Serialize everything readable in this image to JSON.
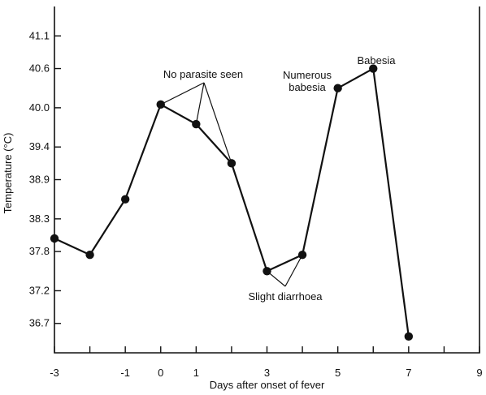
{
  "chart_data": {
    "type": "line",
    "title": "",
    "xlabel": "Days after onset of fever",
    "ylabel": "Temperature (°C)",
    "xlim": [
      -3,
      9
    ],
    "ylim": [
      36.25,
      41.55
    ],
    "x_ticks": [
      -3,
      -2,
      -1,
      0,
      1,
      2,
      3,
      4,
      5,
      6,
      7,
      8,
      9
    ],
    "x_tick_labels": [
      "-3",
      "",
      "-1",
      "0",
      "1",
      "",
      "3",
      "",
      "5",
      "",
      "7",
      "",
      "9"
    ],
    "y_ticks": [
      36.7,
      37.2,
      37.8,
      38.3,
      38.9,
      39.4,
      40.0,
      40.6,
      41.1
    ],
    "y_tick_labels": [
      "36.7",
      "37.2",
      "37.8",
      "38.3",
      "38.9",
      "39.4",
      "40.0",
      "40.6",
      "41.1"
    ],
    "grid": false,
    "series": [
      {
        "x": [
          -3,
          -2,
          -1,
          0,
          1,
          2,
          3,
          4,
          5,
          6,
          7
        ],
        "y": [
          38.0,
          37.75,
          38.6,
          40.05,
          39.75,
          39.15,
          37.5,
          37.75,
          40.3,
          40.6,
          36.5
        ]
      }
    ],
    "annotations": [
      {
        "text": "No parasite seen",
        "targets": [
          [
            0,
            40.05
          ],
          [
            1,
            39.75
          ],
          [
            2,
            39.15
          ]
        ]
      },
      {
        "text": "Numerous babesia",
        "lines": [
          "Numerous",
          "babesia"
        ],
        "targets": [
          [
            5,
            40.3
          ]
        ]
      },
      {
        "text": "Babesia",
        "targets": [
          [
            6,
            40.6
          ]
        ]
      },
      {
        "text": "Slight diarrhoea",
        "targets": [
          [
            3,
            37.5
          ],
          [
            4,
            37.75
          ]
        ]
      }
    ]
  }
}
